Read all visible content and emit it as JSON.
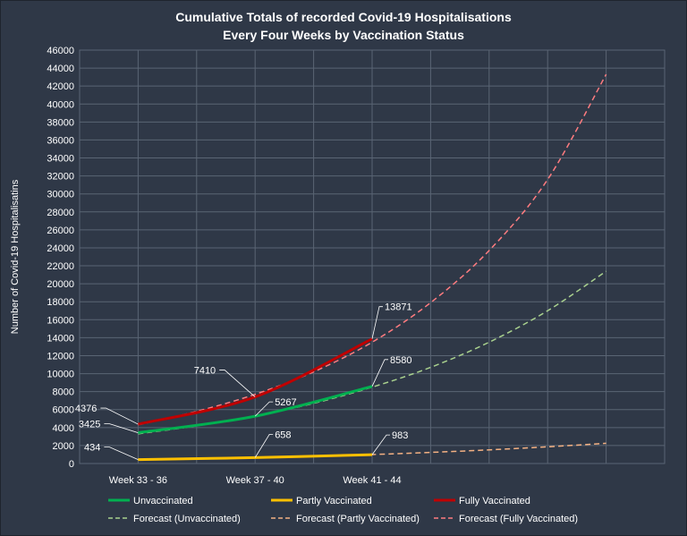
{
  "chart_data": {
    "type": "line",
    "title_lines": [
      "Cumulative Totals of recorded Covid-19 Hospitalisations",
      "Every Four Weeks by Vaccination Status"
    ],
    "xlabel": "",
    "ylabel": "Number of Covid-19 Hospitalisatins",
    "ylim": [
      0,
      46000
    ],
    "yticks": [
      0,
      2000,
      4000,
      6000,
      8000,
      10000,
      12000,
      14000,
      16000,
      18000,
      20000,
      22000,
      24000,
      26000,
      28000,
      30000,
      32000,
      34000,
      36000,
      38000,
      40000,
      42000,
      44000,
      46000
    ],
    "grid": true,
    "legend_position": "bottom",
    "categories": [
      "Week 33 - 36",
      "",
      "Week 37 - 40",
      "",
      "Week 41 - 44",
      "",
      "",
      "",
      "",
      ""
    ],
    "series": [
      {
        "name": "Unvaccinated",
        "color": "#00b050",
        "style": "solid",
        "x": [
          0,
          2,
          4
        ],
        "values": [
          3425,
          5267,
          8580
        ],
        "labels": [
          "3425",
          "5267",
          "8580"
        ]
      },
      {
        "name": "Partly Vaccinated",
        "color": "#ffc000",
        "style": "solid",
        "x": [
          0,
          2,
          4
        ],
        "values": [
          434,
          658,
          983
        ],
        "labels": [
          "434",
          "658",
          "983"
        ]
      },
      {
        "name": "Fully Vaccinated",
        "color": "#c00000",
        "style": "solid",
        "x": [
          0,
          2,
          4
        ],
        "values": [
          4376,
          7410,
          13871
        ],
        "labels": [
          "4376",
          "7410",
          "13871"
        ]
      },
      {
        "name": "Forecast (Unvaccinated)",
        "color": "#a9d18e",
        "style": "dashed",
        "x": [
          0,
          1,
          2,
          3,
          4,
          5,
          6,
          7,
          8
        ],
        "values": [
          3300,
          4200,
          5300,
          6700,
          8500,
          10700,
          13500,
          17000,
          21400
        ]
      },
      {
        "name": "Forecast (Partly Vaccinated)",
        "color": "#f4b183",
        "style": "dashed",
        "x": [
          0,
          1,
          2,
          3,
          4,
          5,
          6,
          7,
          8
        ],
        "values": [
          420,
          530,
          660,
          810,
          1000,
          1240,
          1520,
          1860,
          2250
        ]
      },
      {
        "name": "Forecast (Fully Vaccinated)",
        "color": "#ff7c80",
        "style": "dashed",
        "x": [
          0,
          1,
          2,
          3,
          4,
          5,
          6,
          7,
          8
        ],
        "values": [
          4300,
          5800,
          7700,
          10200,
          13500,
          17900,
          23700,
          31600,
          43300
        ]
      }
    ]
  }
}
